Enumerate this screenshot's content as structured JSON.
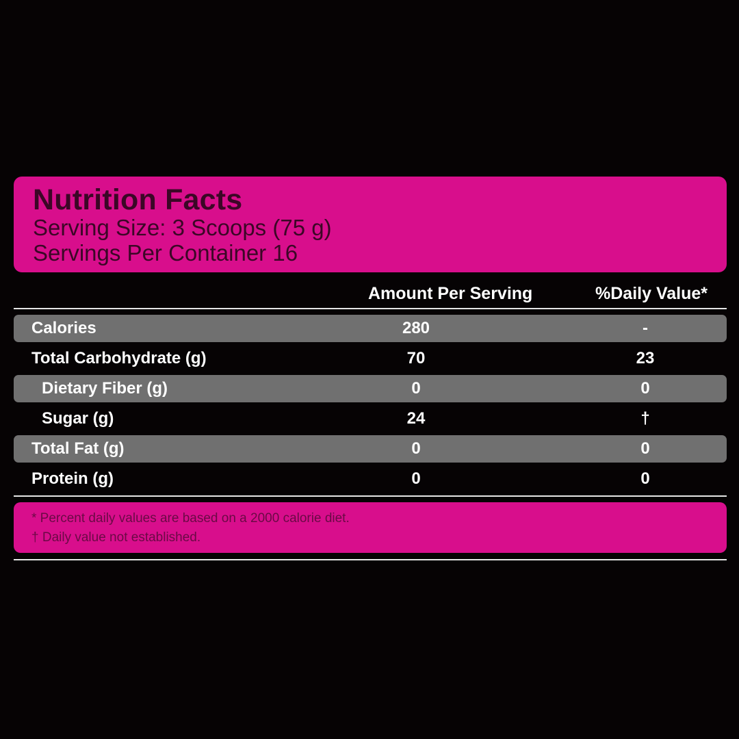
{
  "header": {
    "title": "Nutrition Facts",
    "serving_size": "Serving Size: 3 Scoops (75 g)",
    "servings_per_container": "Servings Per Container 16"
  },
  "columns": {
    "amount": "Amount Per Serving",
    "daily_value": "%Daily Value*"
  },
  "rows": [
    {
      "name": "Calories",
      "amount": "280",
      "dv": "-"
    },
    {
      "name": "Total Carbohydrate (g)",
      "amount": "70",
      "dv": "23"
    },
    {
      "name": "Dietary Fiber (g)",
      "amount": "0",
      "dv": "0"
    },
    {
      "name": "Sugar (g)",
      "amount": "24",
      "dv": "†"
    },
    {
      "name": "Total Fat (g)",
      "amount": "0",
      "dv": "0"
    },
    {
      "name": "Protein (g)",
      "amount": "0",
      "dv": "0"
    }
  ],
  "footnotes": [
    "*  Percent daily values are based on a 2000 calorie diet.",
    "† Daily value not established."
  ],
  "colors": {
    "background": "#060304",
    "accent": "#d80e8c",
    "header_text": "#3b0726",
    "row_shade": "#707070"
  }
}
